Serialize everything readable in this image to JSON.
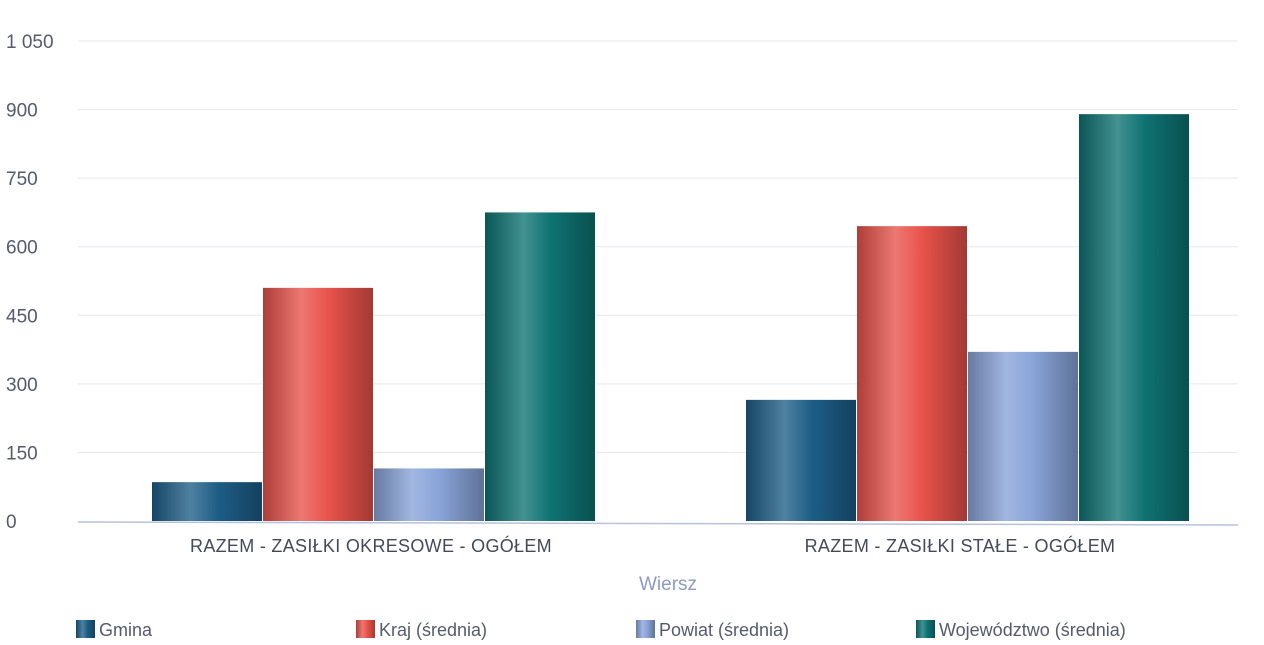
{
  "chart_data": {
    "type": "bar",
    "categories": [
      "RAZEM -  ZASIŁKI OKRESOWE - OGÓŁEM",
      "RAZEM -  ZASIŁKI STAŁE - OGÓŁEM"
    ],
    "series": [
      {
        "name": "Gmina",
        "values": [
          85,
          265
        ],
        "color": "#1d5d86"
      },
      {
        "name": "Kraj (średnia)",
        "values": [
          510,
          645
        ],
        "color": "#e8524a"
      },
      {
        "name": "Powiat (średnia)",
        "values": [
          115,
          370
        ],
        "color": "#88a3d8"
      },
      {
        "name": "Województwo (średnia)",
        "values": [
          675,
          890
        ],
        "color": "#0e7272"
      }
    ],
    "xlabel": "Wiersz",
    "ylabel": "",
    "ylim": [
      0,
      1050
    ],
    "yticks": [
      0,
      150,
      300,
      450,
      600,
      750,
      900,
      1050
    ],
    "ytick_labels": [
      "0",
      "150",
      "300",
      "450",
      "600",
      "750",
      "900",
      "1 050"
    ],
    "grid": true,
    "legend_position": "bottom"
  }
}
